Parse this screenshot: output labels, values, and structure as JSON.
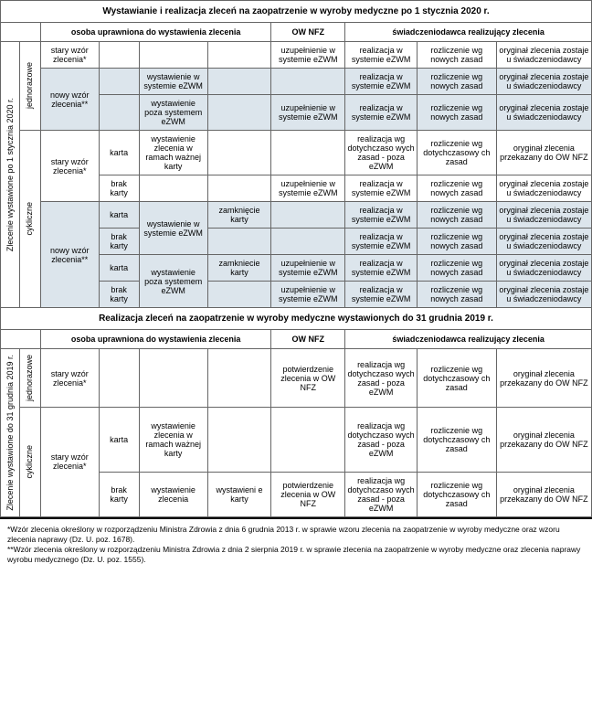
{
  "title1": "Wystawianie i realizacja zleceń na zaopatrzenie w wyroby medyczne po 1 stycznia 2020 r.",
  "title2": "Realizacja zleceń na zaopatrzenie w wyroby medyczne wystawionych do 31 grudnia 2019 r.",
  "headers": {
    "h1": "osoba uprawniona do wystawienia zlecenia",
    "h2": "OW NFZ",
    "h3": "świadczeniodawca realizujący zlecenia"
  },
  "vlabels": {
    "v1": "Zlecenie wystawione po 1 stycznia 2020 r.",
    "v2": "Zlecenie wystawione do 31 grudnia 2019 r.",
    "single": "jednorazowe",
    "cyclic": "cykliczne"
  },
  "cells": {
    "stary": "stary wzór zlecenia*",
    "nowy": "nowy wzór zlecenia**",
    "karta": "karta",
    "brakKarty": "brak karty",
    "wystEzwm": "wystawienie w systemie eZWM",
    "wystPoza": "wystawienie poza systemem eZWM",
    "wystRamach": "wystawienie zlecenia w ramach ważnej karty",
    "wystZlec": "wystawienie zlecenia",
    "zamKarty": "zamknięcie karty",
    "zamKarty2": "zamkniecie karty",
    "wystEKarty": "wystawieni e karty",
    "uzup": "uzupełnienie w systemie eZWM",
    "potw": "potwierdzenie zlecenia w OW NFZ",
    "realEzwm": "realizacja w systemie eZWM",
    "realDot": "realizacja wg dotychczaso wych zasad - poza eZWM",
    "rozNowe": "rozliczenie wg nowych zasad",
    "rozDot": "rozliczenie wg dotychczasowy ch zasad",
    "rozDot2": "rozliczenie wg dotychczasowy ch  zasad",
    "oryginal": "oryginał zlecenia zostaje u świadczeniodawcy",
    "oryginalOW": "oryginał zlecenia przekazany do OW NFZ"
  },
  "footnote1": "*Wzór zlecenia określony w rozporządzeniu Ministra Zdrowia z dnia 6 grudnia 2013 r. w sprawie wzoru zlecenia na zaopatrzenie w wyroby medyczne oraz wzoru zlecenia naprawy (Dz. U. poz. 1678).",
  "footnote2": "**Wzór zlecenia określony w rozporządzeniu Ministra Zdrowia z dnia 2 sierpnia 2019 r. w sprawie zlecenia na zaopatrzenie w wyroby medyczne oraz zlecenia naprawy wyrobu medycznego (Dz. U. poz. 1555)."
}
